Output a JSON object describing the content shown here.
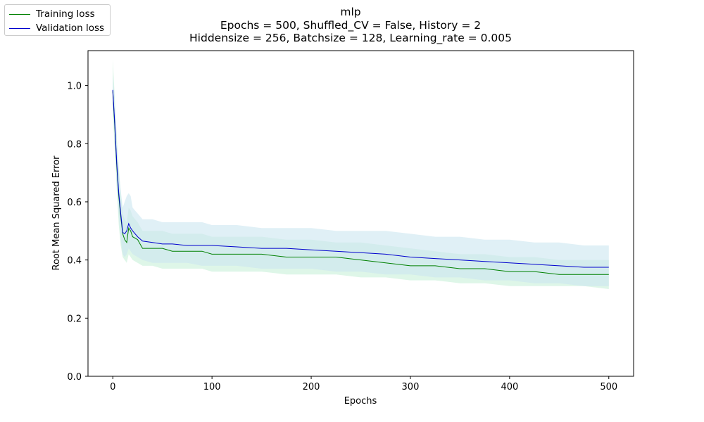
{
  "title": {
    "line1": "mlp",
    "line2": "Epochs = 500, Shuffled_CV = False, History = 2",
    "line3": "Hiddensize = 256, Batchsize = 128, Learning_rate = 0.005"
  },
  "legend": {
    "items": [
      {
        "label": "Training loss",
        "color": "#008000"
      },
      {
        "label": "Validation loss",
        "color": "#0000cd"
      }
    ]
  },
  "chart_data": {
    "type": "line",
    "title": "mlp\nEpochs = 500, Shuffled_CV = False, History = 2\nHiddensize = 256, Batchsize = 128, Learning_rate = 0.005",
    "xlabel": "Epochs",
    "ylabel": "Root Mean Squared Error",
    "xlim": [
      -25,
      525
    ],
    "ylim": [
      0.0,
      1.12
    ],
    "xticks": [
      0,
      100,
      200,
      300,
      400,
      500
    ],
    "xtick_labels": [
      "0",
      "100",
      "200",
      "300",
      "400",
      "500"
    ],
    "yticks": [
      0.0,
      0.2,
      0.4,
      0.6,
      0.8,
      1.0
    ],
    "ytick_labels": [
      "0.0",
      "0.2",
      "0.4",
      "0.6",
      "0.8",
      "1.0"
    ],
    "grid": false,
    "legend_position": "outside top-left",
    "x": [
      0,
      2,
      4,
      6,
      8,
      10,
      12,
      14,
      16,
      18,
      20,
      25,
      30,
      40,
      50,
      60,
      75,
      90,
      100,
      125,
      150,
      175,
      200,
      225,
      250,
      275,
      300,
      325,
      350,
      375,
      400,
      425,
      450,
      475,
      500
    ],
    "series": [
      {
        "name": "Training loss",
        "color": "#008000",
        "band_color": "#c8f0d8",
        "values": [
          0.98,
          0.86,
          0.72,
          0.62,
          0.55,
          0.49,
          0.47,
          0.46,
          0.51,
          0.5,
          0.48,
          0.47,
          0.44,
          0.44,
          0.44,
          0.43,
          0.43,
          0.43,
          0.42,
          0.42,
          0.42,
          0.41,
          0.41,
          0.41,
          0.4,
          0.39,
          0.38,
          0.38,
          0.37,
          0.37,
          0.36,
          0.36,
          0.35,
          0.35,
          0.35
        ],
        "lower": [
          0.9,
          0.78,
          0.64,
          0.52,
          0.45,
          0.41,
          0.4,
          0.39,
          0.42,
          0.41,
          0.4,
          0.39,
          0.38,
          0.38,
          0.37,
          0.37,
          0.37,
          0.37,
          0.36,
          0.36,
          0.36,
          0.35,
          0.35,
          0.35,
          0.34,
          0.34,
          0.33,
          0.33,
          0.32,
          0.32,
          0.31,
          0.31,
          0.31,
          0.31,
          0.3
        ],
        "upper": [
          1.09,
          0.96,
          0.82,
          0.72,
          0.63,
          0.56,
          0.54,
          0.53,
          0.58,
          0.57,
          0.55,
          0.53,
          0.5,
          0.5,
          0.5,
          0.49,
          0.49,
          0.49,
          0.48,
          0.48,
          0.48,
          0.47,
          0.47,
          0.46,
          0.46,
          0.45,
          0.44,
          0.43,
          0.42,
          0.42,
          0.41,
          0.41,
          0.4,
          0.4,
          0.4
        ]
      },
      {
        "name": "Validation loss",
        "color": "#0000cd",
        "band_color": "#cce6f0",
        "values": [
          0.985,
          0.87,
          0.73,
          0.63,
          0.56,
          0.495,
          0.49,
          0.5,
          0.525,
          0.51,
          0.5,
          0.48,
          0.465,
          0.46,
          0.455,
          0.455,
          0.45,
          0.45,
          0.45,
          0.445,
          0.44,
          0.44,
          0.435,
          0.43,
          0.425,
          0.42,
          0.41,
          0.405,
          0.4,
          0.395,
          0.39,
          0.385,
          0.38,
          0.375,
          0.375
        ],
        "lower": [
          0.93,
          0.8,
          0.66,
          0.55,
          0.47,
          0.42,
          0.41,
          0.42,
          0.44,
          0.43,
          0.42,
          0.41,
          0.4,
          0.39,
          0.39,
          0.39,
          0.39,
          0.38,
          0.38,
          0.38,
          0.37,
          0.37,
          0.37,
          0.36,
          0.36,
          0.35,
          0.35,
          0.34,
          0.34,
          0.33,
          0.33,
          0.32,
          0.32,
          0.31,
          0.31
        ],
        "upper": [
          1.04,
          0.95,
          0.81,
          0.7,
          0.64,
          0.58,
          0.6,
          0.62,
          0.63,
          0.62,
          0.58,
          0.56,
          0.54,
          0.54,
          0.53,
          0.53,
          0.53,
          0.53,
          0.52,
          0.52,
          0.51,
          0.51,
          0.51,
          0.5,
          0.5,
          0.5,
          0.49,
          0.48,
          0.48,
          0.47,
          0.47,
          0.46,
          0.46,
          0.45,
          0.45
        ]
      }
    ]
  }
}
